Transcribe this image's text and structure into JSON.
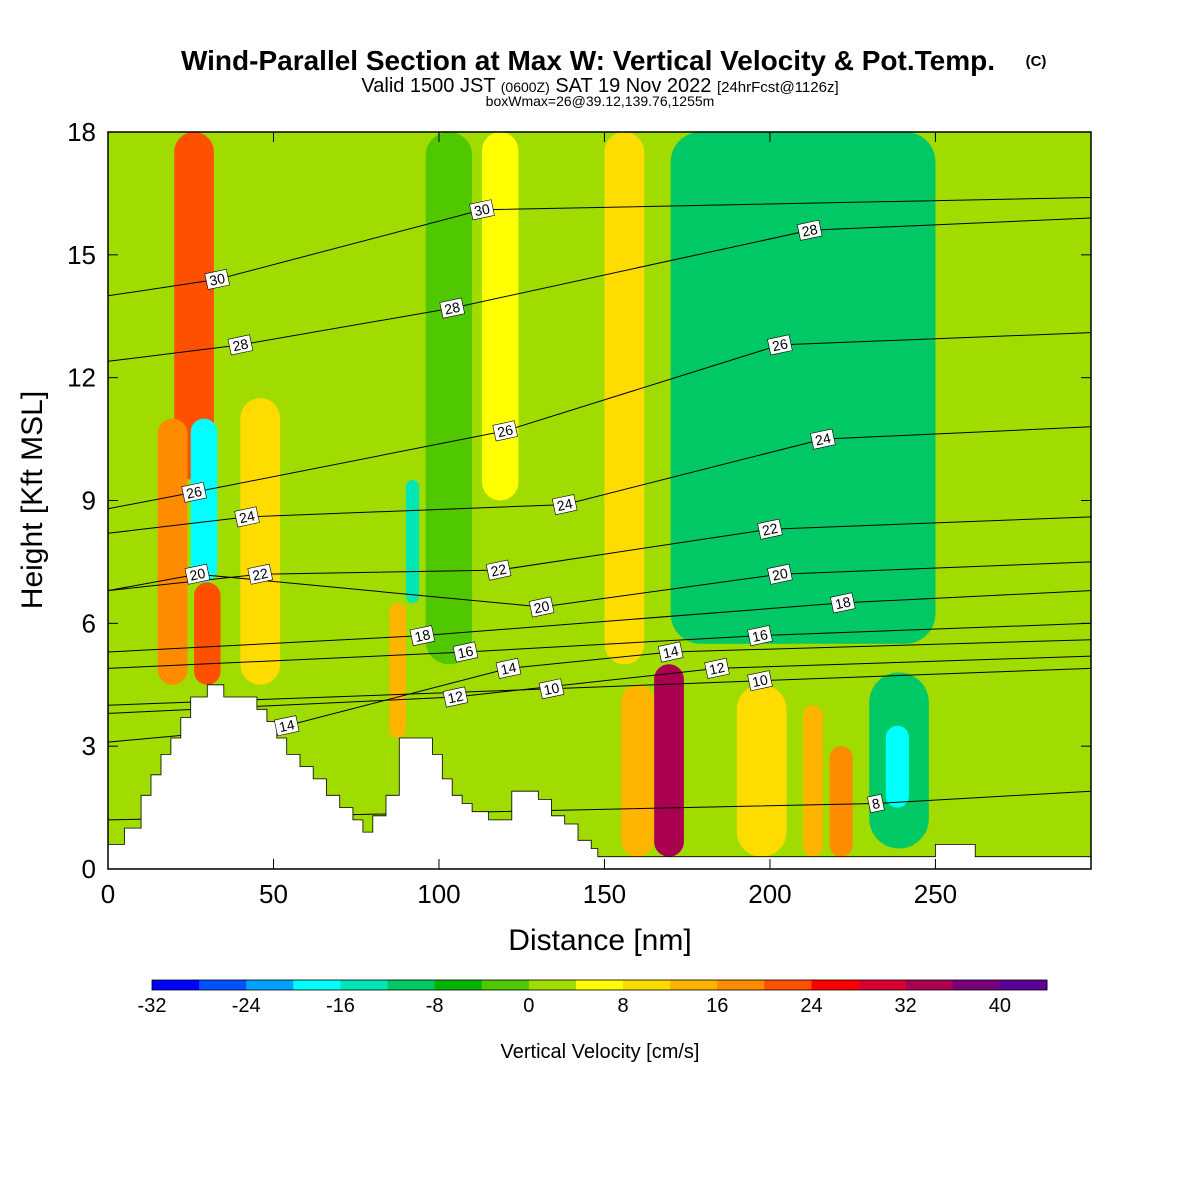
{
  "header": {
    "title": "Wind-Parallel Section at Max W: Vertical Velocity & Pot.Temp.",
    "copyright": "(C)",
    "valid_prefix": "Valid 1500 JST",
    "valid_utc": "(0600Z)",
    "valid_date": "SAT 19 Nov 2022",
    "forecast": "[24hrFcst@1126z]",
    "box_info": "boxWmax=26@39.12,139.76,1255m"
  },
  "chart_data": {
    "type": "heatmap",
    "title": "Wind-Parallel Section at Max W: Vertical Velocity & Pot.Temp.",
    "xlabel": "Distance [nm]",
    "ylabel": "Height [Kft MSL]",
    "xlim": [
      0,
      297
    ],
    "ylim": [
      0,
      18
    ],
    "x_ticks": [
      0,
      50,
      100,
      150,
      200,
      250
    ],
    "y_ticks": [
      0,
      3,
      6,
      9,
      12,
      15,
      18
    ],
    "terrain": [
      [
        0,
        0.6
      ],
      [
        5,
        0.6
      ],
      [
        5,
        1.0
      ],
      [
        10,
        1.0
      ],
      [
        10,
        1.8
      ],
      [
        13,
        1.8
      ],
      [
        13,
        2.3
      ],
      [
        16,
        2.3
      ],
      [
        16,
        2.8
      ],
      [
        19,
        2.8
      ],
      [
        19,
        3.2
      ],
      [
        22,
        3.2
      ],
      [
        22,
        3.7
      ],
      [
        25,
        3.7
      ],
      [
        25,
        4.2
      ],
      [
        30,
        4.2
      ],
      [
        30,
        4.5
      ],
      [
        35,
        4.5
      ],
      [
        35,
        4.2
      ],
      [
        45,
        4.2
      ],
      [
        45,
        3.9
      ],
      [
        48,
        3.9
      ],
      [
        48,
        3.6
      ],
      [
        51,
        3.6
      ],
      [
        51,
        3.2
      ],
      [
        54,
        3.2
      ],
      [
        54,
        2.8
      ],
      [
        58,
        2.8
      ],
      [
        58,
        2.5
      ],
      [
        62,
        2.5
      ],
      [
        62,
        2.2
      ],
      [
        66,
        2.2
      ],
      [
        66,
        1.8
      ],
      [
        70,
        1.8
      ],
      [
        70,
        1.5
      ],
      [
        74,
        1.5
      ],
      [
        74,
        1.2
      ],
      [
        77,
        1.2
      ],
      [
        77,
        0.9
      ],
      [
        80,
        0.9
      ],
      [
        80,
        1.3
      ],
      [
        84,
        1.3
      ],
      [
        84,
        1.8
      ],
      [
        88,
        1.8
      ],
      [
        88,
        3.2
      ],
      [
        98,
        3.2
      ],
      [
        98,
        2.8
      ],
      [
        101,
        2.8
      ],
      [
        101,
        2.2
      ],
      [
        104,
        2.2
      ],
      [
        104,
        1.8
      ],
      [
        107,
        1.8
      ],
      [
        107,
        1.6
      ],
      [
        110,
        1.6
      ],
      [
        110,
        1.4
      ],
      [
        115,
        1.4
      ],
      [
        115,
        1.2
      ],
      [
        122,
        1.2
      ],
      [
        122,
        1.9
      ],
      [
        130,
        1.9
      ],
      [
        130,
        1.7
      ],
      [
        134,
        1.7
      ],
      [
        134,
        1.3
      ],
      [
        138,
        1.3
      ],
      [
        138,
        1.1
      ],
      [
        142,
        1.1
      ],
      [
        142,
        0.7
      ],
      [
        146,
        0.7
      ],
      [
        146,
        0.5
      ],
      [
        148,
        0.5
      ],
      [
        148,
        0.3
      ],
      [
        152,
        0.3
      ],
      [
        152,
        0.3
      ],
      [
        250,
        0.3
      ],
      [
        250,
        0.6
      ],
      [
        262,
        0.6
      ],
      [
        262,
        0.3
      ],
      [
        297,
        0.3
      ]
    ],
    "vertical_velocity_cells": [
      {
        "x": [
          20,
          32
        ],
        "y": [
          9.5,
          18
        ],
        "value": 22
      },
      {
        "x": [
          15,
          24
        ],
        "y": [
          4.5,
          11
        ],
        "value": 18
      },
      {
        "x": [
          25,
          33
        ],
        "y": [
          7,
          11
        ],
        "value": -20
      },
      {
        "x": [
          26,
          34
        ],
        "y": [
          4.5,
          7
        ],
        "value": 20
      },
      {
        "x": [
          40,
          52
        ],
        "y": [
          4.5,
          11.5
        ],
        "value": 8
      },
      {
        "x": [
          90,
          94
        ],
        "y": [
          6.5,
          9.5
        ],
        "value": -16
      },
      {
        "x": [
          85,
          90
        ],
        "y": [
          3.2,
          6.5
        ],
        "value": 14
      },
      {
        "x": [
          150,
          162
        ],
        "y": [
          5,
          18
        ],
        "value": 8
      },
      {
        "x": [
          113,
          124
        ],
        "y": [
          9,
          18
        ],
        "value": 6
      },
      {
        "x": [
          165,
          174
        ],
        "y": [
          0.3,
          5
        ],
        "value": 32
      },
      {
        "x": [
          155,
          165
        ],
        "y": [
          0.3,
          4.5
        ],
        "value": 14
      },
      {
        "x": [
          190,
          205
        ],
        "y": [
          0.3,
          4.5
        ],
        "value": 10
      },
      {
        "x": [
          210,
          216
        ],
        "y": [
          0.3,
          4
        ],
        "value": 14
      },
      {
        "x": [
          218,
          225
        ],
        "y": [
          0.3,
          3
        ],
        "value": 18
      },
      {
        "x": [
          230,
          248
        ],
        "y": [
          0.5,
          4.8
        ],
        "value": -10
      },
      {
        "x": [
          235,
          242
        ],
        "y": [
          1.5,
          3.5
        ],
        "value": -18
      },
      {
        "x": [
          170,
          250
        ],
        "y": [
          5.5,
          18
        ],
        "value": -10
      },
      {
        "x": [
          255,
          297
        ],
        "y": [
          5,
          18
        ],
        "value": 2
      },
      {
        "x": [
          70,
          82
        ],
        "y": [
          5,
          18
        ],
        "value": 0
      },
      {
        "x": [
          96,
          110
        ],
        "y": [
          5,
          18
        ],
        "value": -4
      }
    ],
    "potential_temperature_contours": [
      {
        "label": "30",
        "x": 113,
        "y": 16.1
      },
      {
        "label": "30",
        "x": 33,
        "y": 14.4
      },
      {
        "label": "28",
        "x": 212,
        "y": 15.6
      },
      {
        "label": "28",
        "x": 104,
        "y": 13.7
      },
      {
        "label": "28",
        "x": 40,
        "y": 12.8
      },
      {
        "label": "26",
        "x": 203,
        "y": 12.8
      },
      {
        "label": "26",
        "x": 120,
        "y": 10.7
      },
      {
        "label": "26",
        "x": 26,
        "y": 9.2
      },
      {
        "label": "24",
        "x": 216,
        "y": 10.5
      },
      {
        "label": "24",
        "x": 138,
        "y": 8.9
      },
      {
        "label": "24",
        "x": 42,
        "y": 8.6
      },
      {
        "label": "22",
        "x": 200,
        "y": 8.3
      },
      {
        "label": "22",
        "x": 118,
        "y": 7.3
      },
      {
        "label": "22",
        "x": 46,
        "y": 7.2
      },
      {
        "label": "20",
        "x": 203,
        "y": 7.2
      },
      {
        "label": "20",
        "x": 131,
        "y": 6.4
      },
      {
        "label": "20",
        "x": 27,
        "y": 7.2
      },
      {
        "label": "18",
        "x": 222,
        "y": 6.5
      },
      {
        "label": "18",
        "x": 95,
        "y": 5.7
      },
      {
        "label": "16",
        "x": 197,
        "y": 5.7
      },
      {
        "label": "16",
        "x": 108,
        "y": 5.3
      },
      {
        "label": "14",
        "x": 170,
        "y": 5.3
      },
      {
        "label": "14",
        "x": 121,
        "y": 4.9
      },
      {
        "label": "14",
        "x": 54,
        "y": 3.5
      },
      {
        "label": "12",
        "x": 184,
        "y": 4.9
      },
      {
        "label": "12",
        "x": 105,
        "y": 4.2
      },
      {
        "label": "10",
        "x": 197,
        "y": 4.6
      },
      {
        "label": "10",
        "x": 134,
        "y": 4.4
      },
      {
        "label": "8",
        "x": 232,
        "y": 1.6
      }
    ],
    "colorbar": {
      "label": "Vertical Velocity [cm/s]",
      "levels": [
        -32,
        -28,
        -24,
        -20,
        -16,
        -12,
        -8,
        -4,
        0,
        4,
        8,
        12,
        16,
        20,
        24,
        28,
        32,
        36,
        40,
        44
      ],
      "tick_labels": [
        -32,
        -24,
        -16,
        -8,
        0,
        8,
        16,
        24,
        32,
        40
      ],
      "colors": [
        "#0000ff",
        "#0050ff",
        "#00a0ff",
        "#00ffff",
        "#00e6b4",
        "#00c864",
        "#00b400",
        "#50c800",
        "#a0dc00",
        "#ffff00",
        "#ffdc00",
        "#ffb400",
        "#ff8c00",
        "#ff5000",
        "#ff0000",
        "#dc0032",
        "#aa0050",
        "#780078",
        "#5a0096"
      ]
    }
  }
}
